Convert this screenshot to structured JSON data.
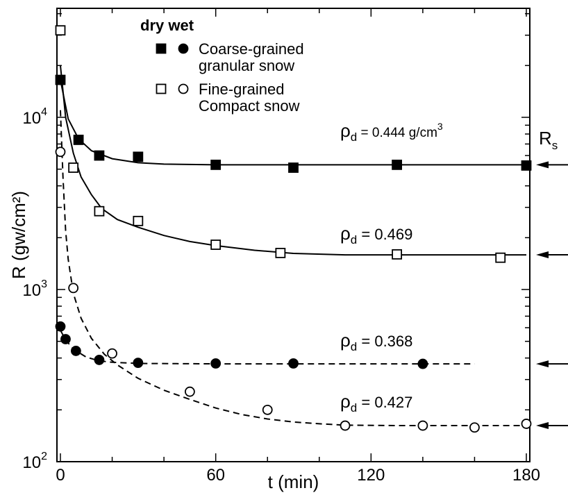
{
  "chart_data": {
    "type": "scatter",
    "title": "",
    "xlabel": "t (min)",
    "ylabel": "R (gw/cm²)",
    "xlim": [
      0,
      180
    ],
    "ylim": [
      100,
      40000
    ],
    "yscale": "log",
    "grid": false,
    "xticks": [
      "0",
      "60",
      "120",
      "180"
    ],
    "yticks": [
      {
        "value": 100,
        "base": "10",
        "exp": "2"
      },
      {
        "value": 1000,
        "base": "10",
        "exp": "3"
      },
      {
        "value": 10000,
        "base": "10",
        "exp": "4"
      }
    ],
    "legend": {
      "header": "dry wet",
      "entries": [
        {
          "label_line1": "Coarse-grained",
          "label_line2": "granular snow",
          "dry_marker": "filled-square",
          "wet_marker": "filled-circle"
        },
        {
          "label_line1": "Fine-grained",
          "label_line2": "Compact snow",
          "dry_marker": "open-square",
          "wet_marker": "open-circle"
        }
      ]
    },
    "series": [
      {
        "marker": "filled-square",
        "line": "solid",
        "annotation": "ρd = 0.444 g/cm³",
        "rho_value": "0.444 g/cm",
        "rho_exp": "3",
        "x": [
          0,
          7,
          15,
          30,
          60,
          90,
          130,
          180
        ],
        "y": [
          16500,
          7400,
          6000,
          5900,
          5300,
          5100,
          5300,
          5250
        ],
        "fit_x": [
          0,
          3,
          7,
          12,
          20,
          30,
          40,
          60,
          90,
          130,
          180
        ],
        "fit_y": [
          16500,
          9800,
          7500,
          6400,
          5750,
          5450,
          5350,
          5300,
          5300,
          5300,
          5300
        ]
      },
      {
        "marker": "open-square",
        "line": "solid",
        "annotation": "ρd = 0.469",
        "rho_value": "0.469",
        "rho_exp": "",
        "x": [
          0,
          5,
          15,
          30,
          60,
          85,
          130,
          170
        ],
        "y": [
          32000,
          5100,
          2850,
          2500,
          1820,
          1630,
          1600,
          1530
        ],
        "fit_x": [
          0,
          2,
          5,
          8,
          12,
          16,
          22,
          30,
          40,
          50,
          60,
          75,
          90,
          110,
          130,
          180
        ],
        "fit_y": [
          20000,
          10000,
          6200,
          4500,
          3550,
          2950,
          2550,
          2300,
          2060,
          1900,
          1800,
          1690,
          1620,
          1590,
          1590,
          1590
        ]
      },
      {
        "marker": "filled-circle",
        "line": "dashed",
        "annotation": "ρd = 0.368",
        "rho_value": "0.368",
        "rho_exp": "",
        "x": [
          0,
          2,
          6,
          15,
          30,
          60,
          90,
          140
        ],
        "y": [
          610,
          515,
          440,
          390,
          375,
          372,
          372,
          370
        ],
        "fit_x": [
          0,
          2,
          5,
          10,
          15,
          20,
          30,
          60,
          90,
          140,
          160
        ],
        "fit_y": [
          580,
          510,
          450,
          405,
          385,
          378,
          372,
          370,
          370,
          370,
          370
        ]
      },
      {
        "marker": "open-circle",
        "line": "dashed",
        "annotation": "ρd = 0.427",
        "rho_value": "0.427",
        "rho_exp": "",
        "x": [
          0,
          5,
          20,
          50,
          80,
          110,
          140,
          160,
          180
        ],
        "y": [
          6300,
          1020,
          425,
          255,
          200,
          162,
          162,
          158,
          166
        ],
        "fit_x": [
          0,
          1,
          2,
          3,
          5,
          8,
          12,
          17,
          22,
          30,
          40,
          50,
          60,
          70,
          80,
          90,
          100,
          110,
          130,
          160,
          180
        ],
        "fit_y": [
          11000,
          4500,
          2200,
          1500,
          950,
          680,
          520,
          420,
          365,
          305,
          260,
          230,
          205,
          188,
          177,
          170,
          166,
          163,
          162,
          162,
          162
        ]
      }
    ],
    "rs_label": "R",
    "rs_sub": "s",
    "rs_values": [
      5300,
      1590,
      370,
      162
    ]
  }
}
